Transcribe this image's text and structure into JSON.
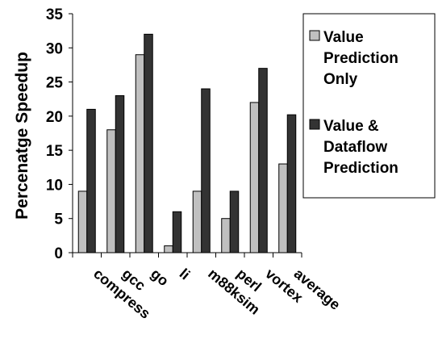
{
  "chart_data": {
    "type": "bar",
    "ylabel": "Percenatge Speedup",
    "ylim": [
      0,
      35
    ],
    "yticks": [
      0,
      5,
      10,
      15,
      20,
      25,
      30,
      35
    ],
    "grid": false,
    "legend_position": "right",
    "categories": [
      "compress",
      "gcc",
      "go",
      "li",
      "m88ksim",
      "perl",
      "vortex",
      "average"
    ],
    "series": [
      {
        "name": "Value Prediction Only",
        "color": "#c0c0c0",
        "values": [
          9,
          18,
          29,
          1,
          9,
          5,
          22,
          13
        ]
      },
      {
        "name": "Value & Dataflow Prediction",
        "color": "#333333",
        "values": [
          21,
          23,
          32,
          6,
          24,
          9,
          27,
          20.2
        ]
      }
    ],
    "legend_lines": [
      [
        "Value",
        "Prediction",
        "Only"
      ],
      [
        "Value &",
        "Dataflow",
        "Prediction"
      ]
    ]
  }
}
